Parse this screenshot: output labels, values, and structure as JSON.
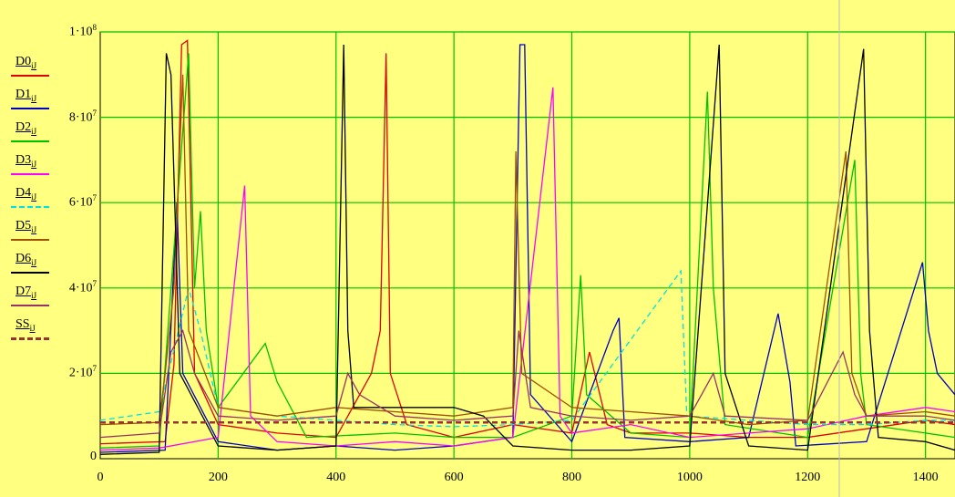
{
  "chart_data": {
    "type": "line",
    "x_range": [
      0,
      1450
    ],
    "y_range": [
      0,
      100000000
    ],
    "x_ticks": [
      {
        "value": 0,
        "label": "0"
      },
      {
        "value": 200,
        "label": "200"
      },
      {
        "value": 400,
        "label": "400"
      },
      {
        "value": 600,
        "label": "600"
      },
      {
        "value": 800,
        "label": "800"
      },
      {
        "value": 1000,
        "label": "1000"
      },
      {
        "value": 1200,
        "label": "1200"
      },
      {
        "value": 1400,
        "label": "1400"
      }
    ],
    "y_ticks": [
      {
        "value": 0,
        "base": "0",
        "exp": ""
      },
      {
        "value": 20000000,
        "base": "2·10",
        "exp": "7"
      },
      {
        "value": 40000000,
        "base": "4·10",
        "exp": "7"
      },
      {
        "value": 60000000,
        "base": "6·10",
        "exp": "7"
      },
      {
        "value": 80000000,
        "base": "8·10",
        "exp": "7"
      },
      {
        "value": 100000000,
        "base": "1·10",
        "exp": "8"
      }
    ],
    "grid": true,
    "grid_color": "#00c000",
    "background_color": "#ffff80",
    "legend_position": "left",
    "series": [
      {
        "name": "D0",
        "subscript": "iJ",
        "color": "#e00000",
        "dashed": false,
        "points": [
          [
            0,
            3500000
          ],
          [
            110,
            4000000
          ],
          [
            125,
            22000000
          ],
          [
            138,
            97000000
          ],
          [
            148,
            98000000
          ],
          [
            160,
            20000000
          ],
          [
            200,
            8000000
          ],
          [
            300,
            6000000
          ],
          [
            400,
            5000000
          ],
          [
            460,
            20000000
          ],
          [
            475,
            30000000
          ],
          [
            485,
            95000000
          ],
          [
            492,
            20000000
          ],
          [
            520,
            8000000
          ],
          [
            600,
            5000000
          ],
          [
            700,
            8000000
          ],
          [
            800,
            6000000
          ],
          [
            830,
            25000000
          ],
          [
            860,
            8000000
          ],
          [
            900,
            6000000
          ],
          [
            1000,
            6000000
          ],
          [
            1100,
            5000000
          ],
          [
            1200,
            5000000
          ],
          [
            1300,
            7000000
          ],
          [
            1400,
            9000000
          ],
          [
            1450,
            8000000
          ]
        ]
      },
      {
        "name": "D1",
        "subscript": "iJ",
        "color": "#0000c0",
        "dashed": false,
        "points": [
          [
            0,
            1500000
          ],
          [
            110,
            2000000
          ],
          [
            130,
            60000000
          ],
          [
            140,
            20000000
          ],
          [
            200,
            4000000
          ],
          [
            300,
            2000000
          ],
          [
            400,
            3000000
          ],
          [
            500,
            2000000
          ],
          [
            600,
            3000000
          ],
          [
            700,
            5000000
          ],
          [
            712,
            97000000
          ],
          [
            720,
            97000000
          ],
          [
            730,
            15000000
          ],
          [
            800,
            4000000
          ],
          [
            870,
            30000000
          ],
          [
            880,
            33000000
          ],
          [
            890,
            5000000
          ],
          [
            1000,
            4000000
          ],
          [
            1100,
            5000000
          ],
          [
            1150,
            34000000
          ],
          [
            1170,
            18000000
          ],
          [
            1180,
            3000000
          ],
          [
            1300,
            4000000
          ],
          [
            1395,
            46000000
          ],
          [
            1405,
            30000000
          ],
          [
            1420,
            20000000
          ],
          [
            1450,
            15000000
          ]
        ]
      },
      {
        "name": "D2",
        "subscript": "iJ",
        "color": "#00c000",
        "dashed": false,
        "points": [
          [
            0,
            2500000
          ],
          [
            100,
            3000000
          ],
          [
            150,
            95000000
          ],
          [
            160,
            40000000
          ],
          [
            170,
            58000000
          ],
          [
            180,
            30000000
          ],
          [
            200,
            12000000
          ],
          [
            280,
            27000000
          ],
          [
            300,
            18000000
          ],
          [
            350,
            5000000
          ],
          [
            500,
            6000000
          ],
          [
            600,
            5000000
          ],
          [
            700,
            5000000
          ],
          [
            800,
            10000000
          ],
          [
            815,
            43000000
          ],
          [
            825,
            15000000
          ],
          [
            900,
            6000000
          ],
          [
            1000,
            5000000
          ],
          [
            1030,
            86000000
          ],
          [
            1040,
            40000000
          ],
          [
            1060,
            8000000
          ],
          [
            1200,
            5000000
          ],
          [
            1280,
            70000000
          ],
          [
            1290,
            20000000
          ],
          [
            1300,
            8000000
          ],
          [
            1400,
            6000000
          ],
          [
            1450,
            5000000
          ]
        ]
      },
      {
        "name": "D3",
        "subscript": "iJ",
        "color": "#ff00ff",
        "dashed": false,
        "points": [
          [
            0,
            2000000
          ],
          [
            100,
            2500000
          ],
          [
            200,
            5000000
          ],
          [
            245,
            64000000
          ],
          [
            255,
            10000000
          ],
          [
            300,
            4000000
          ],
          [
            400,
            3000000
          ],
          [
            500,
            4000000
          ],
          [
            600,
            3000000
          ],
          [
            700,
            5000000
          ],
          [
            768,
            87000000
          ],
          [
            780,
            10000000
          ],
          [
            800,
            6000000
          ],
          [
            900,
            8000000
          ],
          [
            1000,
            5000000
          ],
          [
            1100,
            6000000
          ],
          [
            1200,
            7000000
          ],
          [
            1300,
            10000000
          ],
          [
            1400,
            12000000
          ],
          [
            1450,
            11000000
          ]
        ]
      },
      {
        "name": "D4",
        "subscript": "iJ",
        "color": "#00e0e0",
        "dashed": true,
        "points": [
          [
            0,
            9000000
          ],
          [
            100,
            11000000
          ],
          [
            150,
            40000000
          ],
          [
            170,
            30000000
          ],
          [
            200,
            12000000
          ],
          [
            300,
            10000000
          ],
          [
            400,
            9000000
          ],
          [
            500,
            8000000
          ],
          [
            600,
            7500000
          ],
          [
            700,
            8000000
          ],
          [
            800,
            9000000
          ],
          [
            985,
            44000000
          ],
          [
            995,
            10000000
          ],
          [
            1100,
            9000000
          ],
          [
            1200,
            8000000
          ],
          [
            1300,
            8000000
          ],
          [
            1400,
            9000000
          ],
          [
            1450,
            9000000
          ]
        ]
      },
      {
        "name": "D5",
        "subscript": "iJ",
        "color": "#a05000",
        "dashed": false,
        "points": [
          [
            0,
            8000000
          ],
          [
            100,
            8500000
          ],
          [
            110,
            20000000
          ],
          [
            125,
            40000000
          ],
          [
            140,
            90000000
          ],
          [
            150,
            30000000
          ],
          [
            200,
            12000000
          ],
          [
            300,
            10000000
          ],
          [
            400,
            12000000
          ],
          [
            500,
            11000000
          ],
          [
            600,
            10000000
          ],
          [
            700,
            12000000
          ],
          [
            705,
            72000000
          ],
          [
            715,
            20000000
          ],
          [
            800,
            12000000
          ],
          [
            900,
            11000000
          ],
          [
            1000,
            10000000
          ],
          [
            1100,
            8000000
          ],
          [
            1200,
            9000000
          ],
          [
            1265,
            72000000
          ],
          [
            1275,
            20000000
          ],
          [
            1300,
            10000000
          ],
          [
            1400,
            11000000
          ],
          [
            1450,
            10000000
          ]
        ]
      },
      {
        "name": "D6",
        "subscript": "iJ",
        "color": "#000000",
        "dashed": false,
        "points": [
          [
            0,
            1000000
          ],
          [
            100,
            1500000
          ],
          [
            112,
            95000000
          ],
          [
            120,
            90000000
          ],
          [
            135,
            20000000
          ],
          [
            200,
            3000000
          ],
          [
            300,
            2000000
          ],
          [
            400,
            3000000
          ],
          [
            413,
            97000000
          ],
          [
            420,
            30000000
          ],
          [
            430,
            12000000
          ],
          [
            500,
            12000000
          ],
          [
            600,
            12000000
          ],
          [
            650,
            10000000
          ],
          [
            700,
            3000000
          ],
          [
            800,
            2000000
          ],
          [
            900,
            2000000
          ],
          [
            1000,
            3000000
          ],
          [
            1050,
            97000000
          ],
          [
            1060,
            20000000
          ],
          [
            1100,
            3000000
          ],
          [
            1200,
            2000000
          ],
          [
            1295,
            96000000
          ],
          [
            1305,
            30000000
          ],
          [
            1320,
            5000000
          ],
          [
            1400,
            4000000
          ],
          [
            1450,
            2000000
          ]
        ]
      },
      {
        "name": "D7",
        "subscript": "iJ",
        "color": "#993366",
        "dashed": false,
        "points": [
          [
            0,
            5000000
          ],
          [
            100,
            6000000
          ],
          [
            120,
            25000000
          ],
          [
            140,
            30000000
          ],
          [
            160,
            20000000
          ],
          [
            200,
            10000000
          ],
          [
            300,
            9000000
          ],
          [
            400,
            10000000
          ],
          [
            420,
            20000000
          ],
          [
            440,
            15000000
          ],
          [
            500,
            10000000
          ],
          [
            600,
            9000000
          ],
          [
            700,
            10000000
          ],
          [
            710,
            30000000
          ],
          [
            730,
            12000000
          ],
          [
            800,
            10000000
          ],
          [
            900,
            9000000
          ],
          [
            1000,
            10000000
          ],
          [
            1040,
            20000000
          ],
          [
            1060,
            10000000
          ],
          [
            1200,
            9000000
          ],
          [
            1260,
            25000000
          ],
          [
            1280,
            15000000
          ],
          [
            1300,
            10000000
          ],
          [
            1400,
            10000000
          ],
          [
            1450,
            9000000
          ]
        ]
      },
      {
        "name": "SS",
        "subscript": "iJ",
        "color": "#993333",
        "dashed": true,
        "points": [
          [
            0,
            8500000
          ],
          [
            1450,
            8500000
          ]
        ]
      }
    ]
  }
}
